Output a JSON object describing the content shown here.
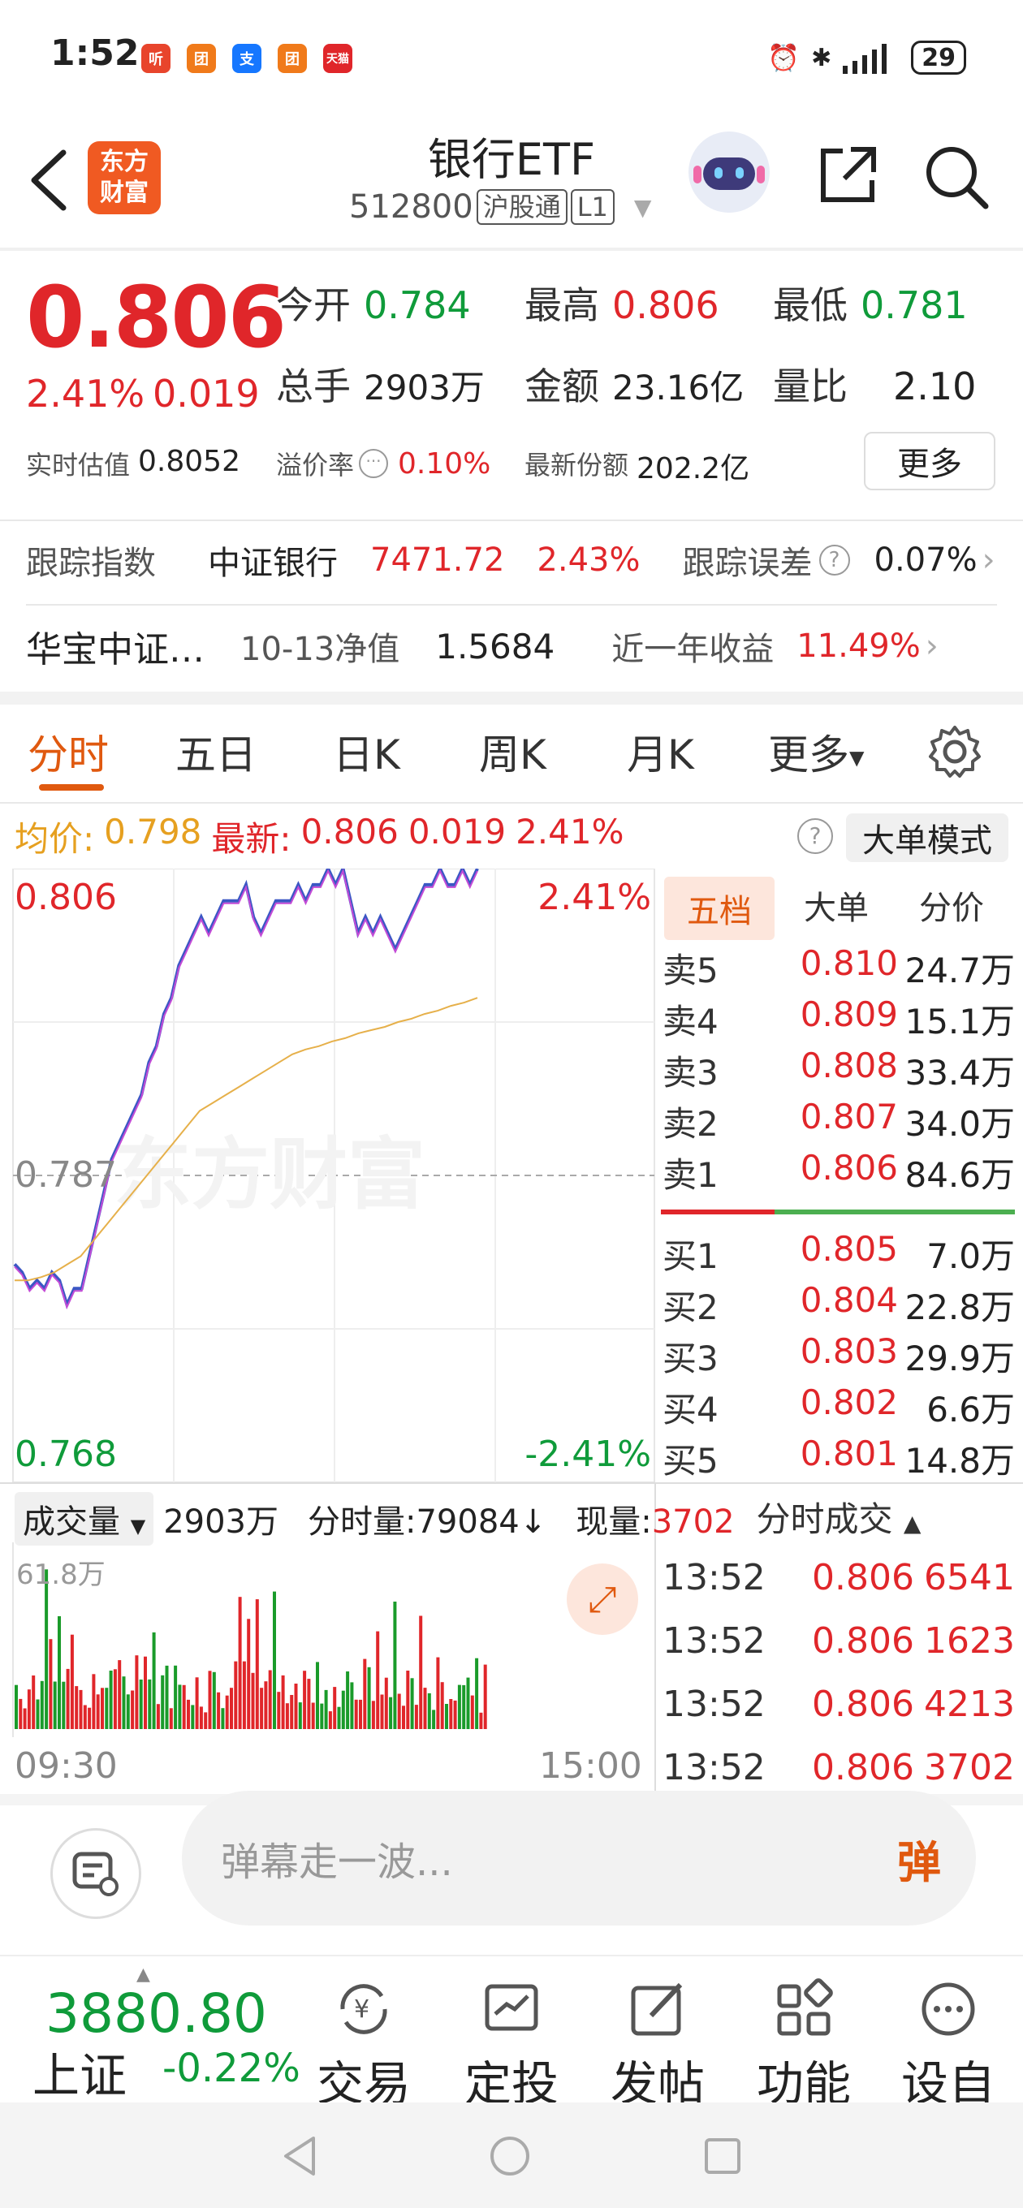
{
  "status_bar": {
    "time": "1:52",
    "battery": "29",
    "app_icons": [
      {
        "label": "听",
        "color": "#e8452c"
      },
      {
        "label": "团",
        "color": "#f07a1a"
      },
      {
        "label": "支",
        "color": "#1677ff"
      },
      {
        "label": "团",
        "color": "#f07a1a"
      },
      {
        "label": "天猫",
        "color": "#e0262a"
      }
    ]
  },
  "header": {
    "logo_text_1": "东方",
    "logo_text_2": "财富",
    "title": "银行ETF",
    "code": "512800",
    "market": "沪股通",
    "level": "L1"
  },
  "quote": {
    "price": "0.806",
    "change_pct": "2.41%",
    "change": "0.019",
    "open_label": "今开",
    "open": "0.784",
    "high_label": "最高",
    "high": "0.806",
    "low_label": "最低",
    "low": "0.781",
    "volume_label": "总手",
    "volume": "2903万",
    "amount_label": "金额",
    "amount": "23.16亿",
    "ratio_label": "量比",
    "ratio": "2.10",
    "iopv_label": "实时估值",
    "iopv": "0.8052",
    "premium_label": "溢价率",
    "premium": "0.10%",
    "shares_label": "最新份额",
    "shares": "202.2亿",
    "more_label": "更多"
  },
  "tracking": {
    "label": "跟踪指数",
    "index_name": "中证银行",
    "index_value": "7471.72",
    "index_change": "2.43%",
    "error_label": "跟踪误差",
    "error_value": "0.07%"
  },
  "fund": {
    "name": "华宝中证…",
    "nav_label": "10-13净值",
    "nav": "1.5684",
    "yield_label": "近一年收益",
    "yield": "11.49%"
  },
  "tabs": {
    "items": [
      "分时",
      "五日",
      "日K",
      "周K",
      "月K",
      "更多"
    ],
    "active": "分时"
  },
  "avg_row": {
    "avg_label": "均价:",
    "avg": "0.798",
    "latest_label": "最新:",
    "latest": "0.806",
    "change": "0.019",
    "change_pct": "2.41%",
    "big_mode": "大单模式"
  },
  "chart_labels": {
    "y_top": "0.806",
    "y_mid": "0.787",
    "y_bottom": "0.768",
    "pct_top": "2.41%",
    "pct_bottom": "-2.41%",
    "watermark": "东方财富",
    "x_start": "09:30",
    "x_end": "15:00"
  },
  "chart_data": {
    "type": "line",
    "title": "",
    "xlabel": "",
    "ylabel": "",
    "ylim": [
      0.768,
      0.806
    ],
    "series": [
      {
        "name": "",
        "color": "#3b57c4",
        "values": [
          0.7815,
          0.781,
          0.78,
          0.7805,
          0.78,
          0.781,
          0.7805,
          0.779,
          0.78,
          0.78,
          0.782,
          0.784,
          0.786,
          0.788,
          0.789,
          0.79,
          0.791,
          0.792,
          0.794,
          0.795,
          0.797,
          0.798,
          0.8,
          0.801,
          0.802,
          0.803,
          0.802,
          0.803,
          0.804,
          0.804,
          0.804,
          0.805,
          0.803,
          0.802,
          0.803,
          0.804,
          0.804,
          0.804,
          0.805,
          0.804,
          0.805,
          0.805,
          0.806,
          0.805,
          0.806,
          0.804,
          0.802,
          0.803,
          0.802,
          0.803,
          0.802,
          0.801,
          0.802,
          0.803,
          0.804,
          0.805,
          0.805,
          0.806,
          0.805,
          0.805,
          0.806,
          0.805,
          0.806
        ]
      },
      {
        "name": "",
        "color": "#e6b04a",
        "values": [
          0.7805,
          0.7805,
          0.7807,
          0.781,
          0.7815,
          0.782,
          0.783,
          0.784,
          0.785,
          0.786,
          0.787,
          0.788,
          0.789,
          0.79,
          0.791,
          0.7915,
          0.792,
          0.7925,
          0.793,
          0.7935,
          0.794,
          0.7945,
          0.7948,
          0.795,
          0.7953,
          0.7955,
          0.7958,
          0.796,
          0.7962,
          0.7965,
          0.7967,
          0.797,
          0.7972,
          0.7975,
          0.7977,
          0.798
        ]
      }
    ],
    "volume": {
      "max_label": "61.8万",
      "total": "2903万",
      "minute_label": "分时量:",
      "minute": "79084",
      "current_label": "现量:",
      "current": "3702"
    }
  },
  "order_book": {
    "tabs": [
      "五档",
      "大单",
      "分价"
    ],
    "asks": [
      {
        "label": "卖5",
        "price": "0.810",
        "vol": "24.7万"
      },
      {
        "label": "卖4",
        "price": "0.809",
        "vol": "15.1万"
      },
      {
        "label": "卖3",
        "price": "0.808",
        "vol": "33.4万"
      },
      {
        "label": "卖2",
        "price": "0.807",
        "vol": "34.0万"
      },
      {
        "label": "卖1",
        "price": "0.806",
        "vol": "84.6万"
      }
    ],
    "bids": [
      {
        "label": "买1",
        "price": "0.805",
        "vol": "7.0万"
      },
      {
        "label": "买2",
        "price": "0.804",
        "vol": "22.8万"
      },
      {
        "label": "买3",
        "price": "0.803",
        "vol": "29.9万"
      },
      {
        "label": "买4",
        "price": "0.802",
        "vol": "6.6万"
      },
      {
        "label": "买5",
        "price": "0.801",
        "vol": "14.8万"
      }
    ]
  },
  "ticks": {
    "title": "分时成交",
    "rows": [
      {
        "time": "13:52",
        "price": "0.806",
        "vol": "6541"
      },
      {
        "time": "13:52",
        "price": "0.806",
        "vol": "1623"
      },
      {
        "time": "13:52",
        "price": "0.806",
        "vol": "4213"
      },
      {
        "time": "13:52",
        "price": "0.806",
        "vol": "3702"
      }
    ]
  },
  "volume_label": "成交量",
  "comment": {
    "placeholder": "弹幕走一波...",
    "danmu": "弹"
  },
  "bottom_nav": {
    "index_value": "3880.80",
    "index_name": "上证",
    "index_change": "-0.22%",
    "items": [
      "交易",
      "定投",
      "发帖",
      "功能",
      "设自"
    ]
  }
}
